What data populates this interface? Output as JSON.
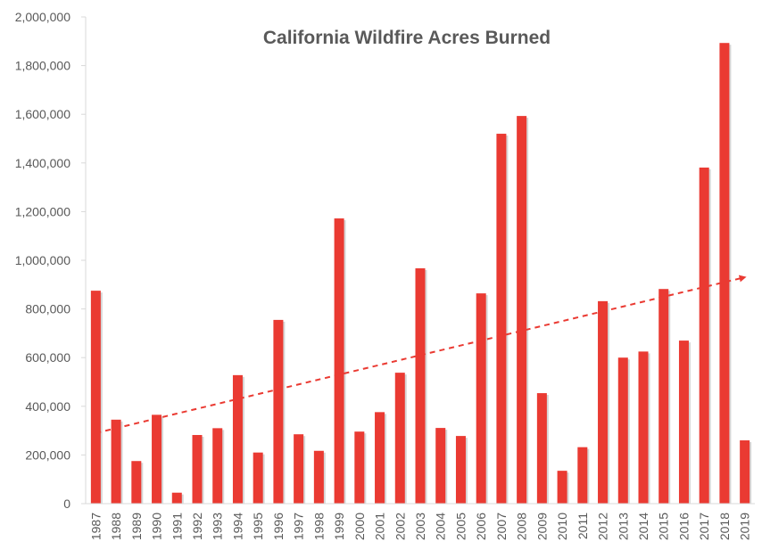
{
  "chart_data": {
    "type": "bar",
    "title": "California Wildfire Acres Burned",
    "xlabel": "",
    "ylabel": "",
    "categories": [
      "1987",
      "1988",
      "1989",
      "1990",
      "1991",
      "1992",
      "1993",
      "1994",
      "1995",
      "1996",
      "1997",
      "1998",
      "1999",
      "2000",
      "2001",
      "2002",
      "2003",
      "2004",
      "2005",
      "2006",
      "2007",
      "2008",
      "2009",
      "2010",
      "2011",
      "2012",
      "2013",
      "2014",
      "2015",
      "2016",
      "2017",
      "2018",
      "2019"
    ],
    "values": [
      875000,
      345000,
      175000,
      365000,
      45000,
      282000,
      310000,
      528000,
      210000,
      755000,
      285000,
      217000,
      1172000,
      296000,
      376000,
      538000,
      967000,
      311000,
      278000,
      864000,
      1520000,
      1593000,
      454000,
      135000,
      232000,
      832000,
      600000,
      625000,
      882000,
      670000,
      1381000,
      1893000,
      260000
    ],
    "y_tick_labels": [
      "0",
      "200,000",
      "400,000",
      "600,000",
      "800,000",
      "1,000,000",
      "1,200,000",
      "1,400,000",
      "1,600,000",
      "1,800,000",
      "2,000,000"
    ],
    "ylim": [
      0,
      2000000
    ],
    "grid": false,
    "trendline": {
      "type": "linear",
      "style": "dashed",
      "start_value": 290000,
      "end_value": 930000
    },
    "colors": {
      "bar": "#ea3a32",
      "trendline": "#ea3a32",
      "axis": "#d9d9d9",
      "text": "#595959"
    }
  }
}
